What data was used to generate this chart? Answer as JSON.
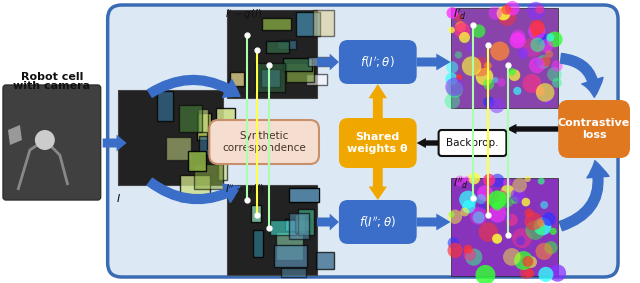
{
  "bg_outer": "#ffffff",
  "bg_main_box": "#dde8f5",
  "main_box_edge": "#3a6cb5",
  "blue_box_color": "#3a6ec8",
  "orange_box_color": "#e07820",
  "synth_box_color": "#f5ddd0",
  "synth_box_edge": "#c8906a",
  "shared_box_color": "#f0a800",
  "backprop_box_color": "#ffffff",
  "backprop_box_edge": "#111111",
  "contrastive_box_color": "#e07820",
  "arrow_blue": "#3a6ec8",
  "arrow_orange": "#f0a800",
  "arrow_black": "#111111",
  "robot_text_line1": "Robot cell",
  "robot_text_line2": "with camera",
  "synth_text": "Synthetic\ncorrespondence",
  "shared_text": "Shared\nweights θ",
  "backprop_text": "Backprop.",
  "contrastive_text": "Contrastive\nloss"
}
